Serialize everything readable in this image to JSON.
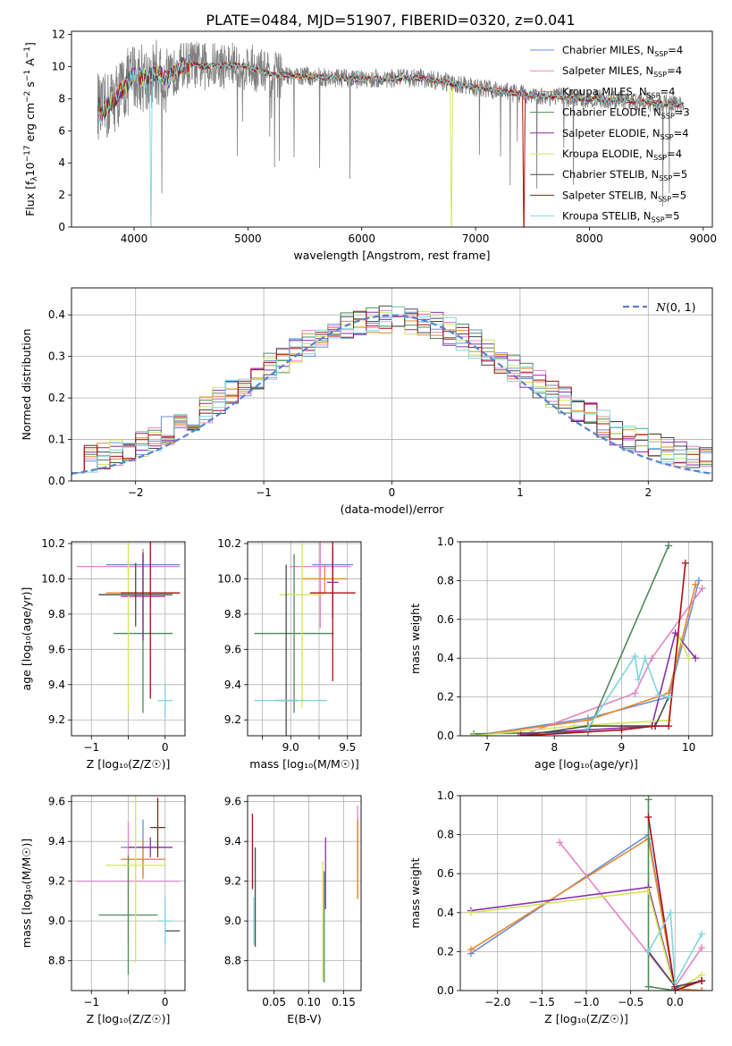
{
  "figure_title": "PLATE=0484, MJD=51907, FIBERID=0320, z=0.041",
  "series_names": [
    "Chabrier MILES, N$_{SSP}$=4",
    "Salpeter MILES, N$_{SSP}$=4",
    "Kroupa MILES, N$_{SSP}$=4",
    "Chabrier ELODIE, N$_{SSP}$=3",
    "Salpeter ELODIE, N$_{SSP}$=4",
    "Kroupa ELODIE, N$_{SSP}$=4",
    "Chabrier STELIB, N$_{SSP}$=5",
    "Salpeter STELIB, N$_{SSP}$=5",
    "Kroupa STELIB, N$_{SSP}$=5"
  ],
  "legend_labels": [
    {
      "main": "Chabrier MILES, N",
      "sub": "SSP",
      "tail": "=4"
    },
    {
      "main": "Salpeter MILES, N",
      "sub": "SSP",
      "tail": "=4"
    },
    {
      "main": "Kroupa MILES, N",
      "sub": "SSP",
      "tail": "=4"
    },
    {
      "main": "Chabrier ELODIE, N",
      "sub": "SSP",
      "tail": "=3"
    },
    {
      "main": "Salpeter ELODIE, N",
      "sub": "SSP",
      "tail": "=4"
    },
    {
      "main": "Kroupa ELODIE, N",
      "sub": "SSP",
      "tail": "=4"
    },
    {
      "main": "Chabrier STELIB, N",
      "sub": "SSP",
      "tail": "=5"
    },
    {
      "main": "Salpeter STELIB, N",
      "sub": "SSP",
      "tail": "=5"
    },
    {
      "main": "Kroupa STELIB, N",
      "sub": "SSP",
      "tail": "=5"
    }
  ],
  "colors": [
    "#6a8fd6",
    "#e584c6",
    "#e8872a",
    "#4f8a5a",
    "#8b2fa8",
    "#cfe65a",
    "#4a4a4a",
    "#a80f16",
    "#7fd6dc"
  ],
  "chart_data": [
    {
      "id": "spectrum",
      "type": "line",
      "title": "PLATE=0484, MJD=51907, FIBERID=0320, z=0.041",
      "xlabel": "wavelength [Angstrom, rest frame]",
      "ylabel_main": "Flux [f",
      "ylabel_sub": "λ",
      "ylabel_mid": "10",
      "ylabel_sup1": "−17",
      "ylabel_rest": " erg cm",
      "ylabel_sup2": "−2",
      "ylabel_rest2": " s",
      "ylabel_sup3": "−1",
      "ylabel_rest3": " A",
      "ylabel_sup4": "−1",
      "ylabel_end": "]",
      "xlim": [
        3450,
        9080
      ],
      "ylim": [
        0,
        12.2
      ],
      "xticks": [
        4000,
        5000,
        6000,
        7000,
        8000,
        9000
      ],
      "xtick_labels": [
        "4000",
        "5000",
        "6000",
        "7000",
        "8000",
        "9000"
      ],
      "yticks": [
        0,
        2,
        4,
        6,
        8,
        10,
        12
      ],
      "ytick_labels": [
        "0",
        "2",
        "4",
        "6",
        "8",
        "10",
        "12"
      ],
      "x_range": [
        3680,
        8830
      ],
      "observed_flux_approx": [
        [
          3700,
          7.0
        ],
        [
          3800,
          7.8
        ],
        [
          3900,
          8.6
        ],
        [
          4000,
          9.5
        ],
        [
          4100,
          9.3
        ],
        [
          4200,
          9.6
        ],
        [
          4300,
          9.2
        ],
        [
          4400,
          10.0
        ],
        [
          4500,
          10.2
        ],
        [
          4600,
          10.0
        ],
        [
          4800,
          10.1
        ],
        [
          5000,
          10.0
        ],
        [
          5200,
          9.5
        ],
        [
          5500,
          9.4
        ],
        [
          6000,
          9.2
        ],
        [
          6500,
          9.3
        ],
        [
          7000,
          8.7
        ],
        [
          7500,
          8.2
        ],
        [
          8000,
          8.0
        ],
        [
          8500,
          7.8
        ],
        [
          8830,
          7.6
        ]
      ],
      "gridlines": false,
      "legend_position": "upper-right"
    },
    {
      "id": "residuals",
      "type": "step",
      "xlabel": "(data-model)/error",
      "ylabel": "Normed distribution",
      "xlim": [
        -2.5,
        2.5
      ],
      "ylim": [
        0,
        0.465
      ],
      "xticks": [
        -2,
        -1,
        0,
        1,
        2
      ],
      "xtick_labels": [
        "−2",
        "−1",
        "0",
        "1",
        "2"
      ],
      "yticks": [
        0.0,
        0.1,
        0.2,
        0.3,
        0.4
      ],
      "ytick_labels": [
        "0.0",
        "0.1",
        "0.2",
        "0.3",
        "0.4"
      ],
      "bin_width": 0.1,
      "gaussian_label_main": "N",
      "gaussian_label_rest": "(0, 1)",
      "gaussian_mean": 0,
      "gaussian_sigma": 1,
      "grid": true,
      "legend_position": "upper-right"
    },
    {
      "id": "age_vs_Z",
      "type": "errorbar",
      "xlabel": "Z [log₁₀(Z/Z☉)]",
      "ylabel": "age  [log₁₀(age/yr)]",
      "xlim": [
        -1.27,
        0.27
      ],
      "ylim": [
        9.11,
        10.21
      ],
      "xticks": [
        -1,
        -0.5,
        0
      ],
      "xtick_labels": [
        "−1",
        "",
        "0"
      ],
      "yticks": [
        9.2,
        9.4,
        9.6,
        9.8,
        10.0,
        10.2
      ],
      "ytick_labels": [
        "9.2",
        "9.4",
        "9.6",
        "9.8",
        "10.0",
        "10.2"
      ],
      "grid": true,
      "points": [
        {
          "series": 0,
          "x": -0.3,
          "xerr": 0.5,
          "y": 10.08,
          "yerr": 0.06
        },
        {
          "series": 1,
          "x": -0.5,
          "xerr": 0.7,
          "y": 10.07,
          "yerr": 0.03
        },
        {
          "series": 2,
          "x": -0.3,
          "xerr": 0.5,
          "y": 9.92,
          "yerr": 0.25
        },
        {
          "series": 3,
          "x": -0.3,
          "xerr": 0.4,
          "y": 9.69,
          "yerr": 0.45
        },
        {
          "series": 4,
          "x": -0.3,
          "xerr": 0.3,
          "y": 9.9,
          "yerr": 0.25
        },
        {
          "series": 5,
          "x": -0.5,
          "xerr": 0.4,
          "y": 9.91,
          "yerr": 0.66
        },
        {
          "series": 6,
          "x": -0.4,
          "xerr": 0.5,
          "y": 9.91,
          "yerr": 0.18
        },
        {
          "series": 7,
          "x": -0.2,
          "xerr": 0.4,
          "y": 9.92,
          "yerr": 0.6
        },
        {
          "series": 8,
          "x": 0.0,
          "xerr": 0.1,
          "y": 9.31,
          "yerr": 0.1
        }
      ]
    },
    {
      "id": "age_vs_mass",
      "type": "errorbar",
      "xlabel": "mass [log₁₀(M/M☉)]",
      "ylabel": "",
      "xlim": [
        8.62,
        9.62
      ],
      "ylim": [
        9.11,
        10.21
      ],
      "xticks": [
        8.75,
        9.0,
        9.25,
        9.5
      ],
      "xtick_labels": [
        "",
        "9.0",
        "",
        "9.5"
      ],
      "yticks": [
        9.2,
        9.4,
        9.6,
        9.8,
        10.0,
        10.2
      ],
      "ytick_labels": [
        "9.2",
        "9.4",
        "9.6",
        "9.8",
        "10.0",
        "10.2"
      ],
      "grid": true,
      "points": [
        {
          "series": 0,
          "x": 9.37,
          "xerr": 0.18,
          "y": 10.08,
          "yerr": 0.07
        },
        {
          "series": 1,
          "x": 9.26,
          "xerr": 0.27,
          "y": 10.07,
          "yerr": 0.35
        },
        {
          "series": 2,
          "x": 9.3,
          "xerr": 0.2,
          "y": 10.0,
          "yerr": 0.08
        },
        {
          "series": 3,
          "x": 9.03,
          "xerr": 0.35,
          "y": 9.69,
          "yerr": 0.45
        },
        {
          "series": 4,
          "x": 9.37,
          "xerr": 0.05,
          "y": 9.98,
          "yerr": 0.2
        },
        {
          "series": 5,
          "x": 9.1,
          "xerr": 0.2,
          "y": 9.91,
          "yerr": 0.64
        },
        {
          "series": 6,
          "x": 8.96,
          "xerr": 0.1,
          "y": 9.31,
          "yerr": 0.77
        },
        {
          "series": 7,
          "x": 9.37,
          "xerr": 0.2,
          "y": 9.92,
          "yerr": 0.5
        },
        {
          "series": 8,
          "x": 9.0,
          "xerr": 0.32,
          "y": 9.31,
          "yerr": 0.0
        }
      ]
    },
    {
      "id": "weight_vs_age",
      "type": "line",
      "xlabel": "age  [log₁₀(age/yr)]",
      "ylabel": "mass weight",
      "xlim": [
        6.6,
        10.35
      ],
      "ylim": [
        0,
        1
      ],
      "xticks": [
        7,
        8,
        9,
        10
      ],
      "xtick_labels": [
        "7",
        "8",
        "9",
        "10"
      ],
      "yticks": [
        0,
        0.2,
        0.4,
        0.6,
        0.8,
        1.0
      ],
      "ytick_labels": [
        "0.0",
        "0.2",
        "0.4",
        "0.6",
        "0.8",
        "1.0"
      ],
      "grid": true,
      "series": [
        {
          "series": 0,
          "x": [
            6.8,
            8.5,
            9.7,
            10.15
          ],
          "y": [
            0.0,
            0.09,
            0.2,
            0.8
          ]
        },
        {
          "series": 1,
          "x": [
            7.5,
            9.2,
            9.45,
            10.2
          ],
          "y": [
            0.0,
            0.22,
            0.4,
            0.76
          ]
        },
        {
          "series": 2,
          "x": [
            6.8,
            8.5,
            9.7,
            10.1
          ],
          "y": [
            0.0,
            0.08,
            0.22,
            0.78
          ]
        },
        {
          "series": 3,
          "x": [
            6.8,
            8.5,
            9.7
          ],
          "y": [
            0.01,
            0.02,
            0.98
          ]
        },
        {
          "series": 4,
          "x": [
            7.5,
            9.0,
            9.45,
            9.8,
            10.1
          ],
          "y": [
            0.01,
            0.04,
            0.05,
            0.53,
            0.4
          ]
        },
        {
          "series": 5,
          "x": [
            6.8,
            8.3,
            9.7,
            9.85,
            10.0
          ],
          "y": [
            0.0,
            0.05,
            0.08,
            0.51,
            0.4
          ]
        },
        {
          "series": 6,
          "x": [
            7.5,
            8.5,
            9.5,
            9.7
          ],
          "y": [
            0.0,
            0.05,
            0.05,
            0.2
          ]
        },
        {
          "series": 7,
          "x": [
            7.5,
            9.0,
            9.5,
            9.7,
            9.95
          ],
          "y": [
            0.0,
            0.03,
            0.05,
            0.05,
            0.89
          ]
        },
        {
          "series": 8,
          "x": [
            8.5,
            9.2,
            9.25,
            9.35,
            9.55,
            9.7
          ],
          "y": [
            0.04,
            0.41,
            0.29,
            0.4,
            0.21,
            0.2
          ]
        }
      ]
    },
    {
      "id": "mass_vs_Z",
      "type": "errorbar",
      "xlabel": "Z [log₁₀(Z/Z☉)]",
      "ylabel": "mass [log₁₀(M/M☉)]",
      "xlim": [
        -1.27,
        0.27
      ],
      "ylim": [
        8.65,
        9.63
      ],
      "xticks": [
        -1,
        -0.5,
        0
      ],
      "xtick_labels": [
        "−1",
        "",
        "0"
      ],
      "yticks": [
        8.8,
        9.0,
        9.2,
        9.4,
        9.6
      ],
      "ytick_labels": [
        "8.8",
        "9.0",
        "9.2",
        "9.4",
        "9.6"
      ],
      "grid": true,
      "points": [
        {
          "series": 0,
          "x": -0.3,
          "xerr": 0.3,
          "y": 9.37,
          "yerr": 0.14
        },
        {
          "series": 1,
          "x": -0.5,
          "xerr": 0.7,
          "y": 9.2,
          "yerr": 0.3
        },
        {
          "series": 2,
          "x": -0.3,
          "xerr": 0.3,
          "y": 9.31,
          "yerr": 0.1
        },
        {
          "series": 3,
          "x": -0.5,
          "xerr": 0.4,
          "y": 9.03,
          "yerr": 0.3
        },
        {
          "series": 4,
          "x": -0.2,
          "xerr": 0.3,
          "y": 9.37,
          "yerr": 0.05
        },
        {
          "series": 5,
          "x": -0.4,
          "xerr": 0.4,
          "y": 9.28,
          "yerr": 0.49
        },
        {
          "series": 6,
          "x": 0.1,
          "xerr": 0.1,
          "y": 8.95,
          "yerr": 0.0
        },
        {
          "series": 7,
          "x": -0.1,
          "xerr": 0.1,
          "y": 9.47,
          "yerr": 0.15
        },
        {
          "series": 8,
          "x": 0.0,
          "xerr": 0.1,
          "y": 9.0,
          "yerr": 0.12
        }
      ]
    },
    {
      "id": "mass_vs_EBV",
      "type": "errorbar",
      "xlabel": "E(B-V)",
      "ylabel": "",
      "xlim": [
        0.012,
        0.175
      ],
      "ylim": [
        8.65,
        9.63
      ],
      "xticks": [
        0.05,
        0.1,
        0.15
      ],
      "xtick_labels": [
        "0.05",
        "0.10",
        "0.15"
      ],
      "yticks": [
        8.8,
        9.0,
        9.2,
        9.4,
        9.6
      ],
      "ytick_labels": [
        "8.8",
        "9.0",
        "9.2",
        "9.4",
        "9.6"
      ],
      "grid": true,
      "points": [
        {
          "series": 0,
          "x": 0.17,
          "xerr": 0,
          "y": 9.37,
          "yerr": 0.14
        },
        {
          "series": 1,
          "x": 0.17,
          "xerr": 0,
          "y": 9.35,
          "yerr": 0.23
        },
        {
          "series": 2,
          "x": 0.17,
          "xerr": 0,
          "y": 9.31,
          "yerr": 0.2
        },
        {
          "series": 3,
          "x": 0.122,
          "xerr": 0,
          "y": 8.97,
          "yerr": 0.28
        },
        {
          "series": 4,
          "x": 0.124,
          "xerr": 0,
          "y": 9.24,
          "yerr": 0.18
        },
        {
          "series": 5,
          "x": 0.12,
          "xerr": 0,
          "y": 9.0,
          "yerr": 0.3
        },
        {
          "series": 6,
          "x": 0.023,
          "xerr": 0,
          "y": 9.12,
          "yerr": 0.25
        },
        {
          "series": 7,
          "x": 0.019,
          "xerr": 0,
          "y": 9.35,
          "yerr": 0.19
        },
        {
          "series": 8,
          "x": 0.021,
          "xerr": 0,
          "y": 9.0,
          "yerr": 0.12
        }
      ]
    },
    {
      "id": "weight_vs_Z",
      "type": "line",
      "xlabel": "Z [log₁₀(Z/Z☉)]",
      "ylabel": "mass weight",
      "xlim": [
        -2.42,
        0.42
      ],
      "ylim": [
        0,
        1
      ],
      "xticks": [
        -2.0,
        -1.5,
        -1.0,
        -0.5,
        0.0
      ],
      "xtick_labels": [
        "−2.0",
        "−1.5",
        "−1.0",
        "−0.5",
        "0.0"
      ],
      "yticks": [
        0,
        0.2,
        0.4,
        0.6,
        0.8,
        1.0
      ],
      "ytick_labels": [
        "0.0",
        "0.2",
        "0.4",
        "0.6",
        "0.8",
        "1.0"
      ],
      "grid": true,
      "series": [
        {
          "series": 0,
          "x": [
            -2.3,
            -0.3,
            0.0,
            0.3
          ],
          "y": [
            0.19,
            0.8,
            0.01,
            0.0
          ]
        },
        {
          "series": 1,
          "x": [
            -1.3,
            0.0,
            0.3
          ],
          "y": [
            0.76,
            0.02,
            0.22
          ]
        },
        {
          "series": 2,
          "x": [
            -2.3,
            -0.3,
            0.0,
            0.3
          ],
          "y": [
            0.21,
            0.78,
            0.01,
            0.0
          ]
        },
        {
          "series": 3,
          "x": [
            -0.3,
            -0.3,
            0.0
          ],
          "y": [
            0.98,
            0.02,
            0.0
          ]
        },
        {
          "series": 4,
          "x": [
            -2.3,
            -0.3,
            0.0,
            0.3
          ],
          "y": [
            0.41,
            0.53,
            0.01,
            0.05
          ]
        },
        {
          "series": 5,
          "x": [
            -2.3,
            -0.3,
            0.0,
            0.3
          ],
          "y": [
            0.4,
            0.51,
            0.0,
            0.08
          ]
        },
        {
          "series": 6,
          "x": [
            -0.3,
            0.0,
            0.3
          ],
          "y": [
            0.2,
            0.02,
            0.05
          ]
        },
        {
          "series": 7,
          "x": [
            -0.3,
            0.0,
            0.3
          ],
          "y": [
            0.89,
            0.0,
            0.05
          ]
        },
        {
          "series": 8,
          "x": [
            -0.3,
            -0.05,
            0.0,
            0.3
          ],
          "y": [
            0.2,
            0.4,
            0.04,
            0.29
          ]
        }
      ]
    }
  ]
}
